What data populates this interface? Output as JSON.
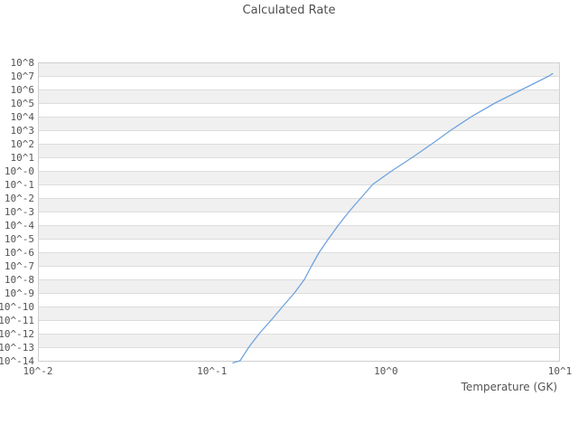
{
  "title": "Calculated Rate",
  "axes": {
    "xlabel": "Temperature (GK)",
    "x_ticks": [
      "10^-2",
      "10^-1",
      "10^0",
      "10^1"
    ],
    "y_ticks": [
      "10^8",
      "10^7",
      "10^6",
      "10^5",
      "10^4",
      "10^3",
      "10^2",
      "10^1",
      "10^-0",
      "10^-1",
      "10^-2",
      "10^-3",
      "10^-4",
      "10^-5",
      "10^-6",
      "10^-7",
      "10^-8",
      "10^-9",
      "10^-10",
      "10^-11",
      "10^-12",
      "10^-13",
      "10^-14"
    ]
  },
  "colors": {
    "curve": "#6fa3dc",
    "band": "#f0f0f0",
    "band_alt": "#ffffff",
    "gridline": "#dddddd",
    "border": "#d0d0d0",
    "text": "#545454"
  },
  "chart_data": {
    "type": "line",
    "title": "Calculated Rate",
    "xlabel": "Temperature (GK)",
    "ylabel": "",
    "x_scale": "log",
    "y_scale": "log",
    "xlim": [
      0.01,
      10
    ],
    "ylim": [
      1e-14,
      100000000.0
    ],
    "grid": "horizontal-bands",
    "legend": "none",
    "series": [
      {
        "name": "Calculated Rate",
        "points": [
          [
            0.132,
            7e-15
          ],
          [
            0.145,
            1e-14
          ],
          [
            0.163,
            1e-13
          ],
          [
            0.187,
            1e-12
          ],
          [
            0.219,
            1e-11
          ],
          [
            0.255,
            1e-10
          ],
          [
            0.298,
            1e-09
          ],
          [
            0.34,
            1e-08
          ],
          [
            0.374,
            1e-07
          ],
          [
            0.414,
            1e-06
          ],
          [
            0.468,
            1e-05
          ],
          [
            0.533,
            0.0001
          ],
          [
            0.614,
            0.001
          ],
          [
            0.718,
            0.01
          ],
          [
            0.839,
            0.1
          ],
          [
            1.08,
            1.0
          ],
          [
            1.42,
            10
          ],
          [
            1.84,
            100
          ],
          [
            2.36,
            1000
          ],
          [
            3.1,
            10000
          ],
          [
            4.23,
            100000
          ],
          [
            6.05,
            1000000
          ],
          [
            8.65,
            10000000
          ],
          [
            9.08,
            15000000
          ]
        ]
      }
    ]
  }
}
